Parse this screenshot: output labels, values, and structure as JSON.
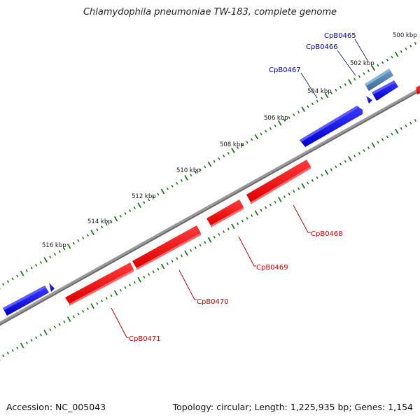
{
  "title": "Chlamydophila pneumoniae TW-183, complete genome",
  "footer": {
    "accession": "Accession: NC_005043",
    "summary": "Topology: circular; Length: 1,225,935 bp; Genes: 1,154"
  },
  "colors": {
    "forward_gene": "#0000ee",
    "reverse_gene": "#ee0000",
    "highlight_gene": "#4a7fae",
    "backbone": "#7a7a7a",
    "tick": "#1a7a1a",
    "label_forward": "#0000aa",
    "label_reverse": "#cc0000"
  },
  "scale_labels": [
    "500 kbp",
    "502 kbp",
    "504 kbp",
    "506 kbp",
    "508 kbp",
    "510 kbp",
    "512 kbp",
    "514 kbp",
    "516 kbp"
  ],
  "genes_forward": [
    "CpB0465",
    "CpB0466",
    "CpB0467"
  ],
  "genes_reverse": [
    "CpB0468",
    "CpB0469",
    "CpB0470",
    "CpB0471"
  ]
}
